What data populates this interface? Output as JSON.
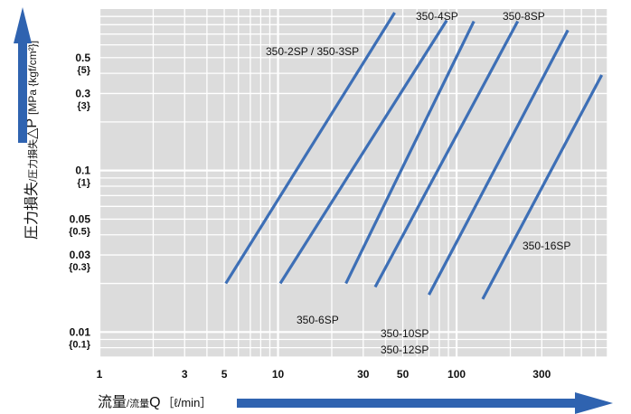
{
  "chart_data": {
    "type": "line",
    "x_scale": "log",
    "y_scale": "log",
    "xlim": [
      1,
      700
    ],
    "ylim": [
      0.007,
      1
    ],
    "grid": true,
    "xlabel": {
      "main": "流量",
      "sub": "/流量",
      "symbol": "Q",
      "unit": "［ℓ/min］"
    },
    "ylabel": {
      "main": "圧力損失",
      "sub": "/圧力損失",
      "symbol": "△P",
      "unit": "[MPa {kgf/cm²}]"
    },
    "x_ticks": [
      {
        "value": 1,
        "label": "1"
      },
      {
        "value": 3,
        "label": "3"
      },
      {
        "value": 5,
        "label": "5"
      },
      {
        "value": 10,
        "label": "10"
      },
      {
        "value": 30,
        "label": "30"
      },
      {
        "value": 50,
        "label": "50"
      },
      {
        "value": 100,
        "label": "100"
      },
      {
        "value": 300,
        "label": "300"
      }
    ],
    "y_ticks": [
      {
        "value": 0.5,
        "label": "0.5",
        "sublabel": "{5}"
      },
      {
        "value": 0.3,
        "label": "0.3",
        "sublabel": "{3}"
      },
      {
        "value": 0.1,
        "label": "0.1",
        "sublabel": "{1}"
      },
      {
        "value": 0.05,
        "label": "0.05",
        "sublabel": "{0.5}"
      },
      {
        "value": 0.03,
        "label": "0.03",
        "sublabel": "{0.3}"
      },
      {
        "value": 0.01,
        "label": "0.01",
        "sublabel": "{0.1}"
      }
    ],
    "series": [
      {
        "name": "350-2SP / 350-3SP",
        "x": [
          5.1,
          45
        ],
        "y": [
          0.02,
          0.95
        ]
      },
      {
        "name": "350-4SP",
        "x": [
          10.3,
          88
        ],
        "y": [
          0.02,
          0.85
        ]
      },
      {
        "name": "350-6SP",
        "x": [
          24,
          125
        ],
        "y": [
          0.02,
          0.84
        ]
      },
      {
        "name": "350-8SP",
        "x": [
          35,
          220
        ],
        "y": [
          0.019,
          0.84
        ]
      },
      {
        "name": "350-10SP\n350-12SP",
        "x": [
          70,
          420
        ],
        "y": [
          0.017,
          0.74
        ]
      },
      {
        "name": "350-16SP",
        "x": [
          140,
          650
        ],
        "y": [
          0.016,
          0.39
        ]
      }
    ],
    "line_color": "#3d6fb6"
  }
}
